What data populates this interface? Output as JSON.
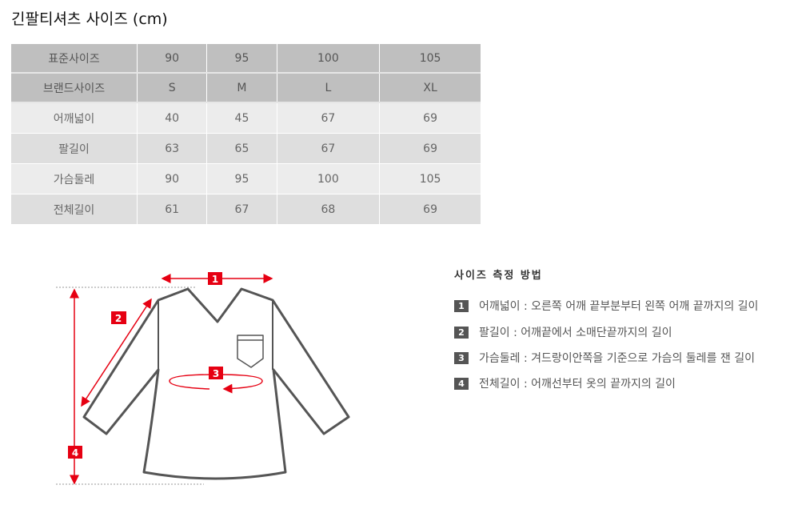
{
  "title": "긴팔티셔츠 사이즈 (cm)",
  "table": {
    "headers": [
      [
        "표준사이즈",
        "90",
        "95",
        "100",
        "105"
      ],
      [
        "브랜드사이즈",
        "S",
        "M",
        "L",
        "XL"
      ]
    ],
    "rows": [
      [
        "어깨넓이",
        "40",
        "45",
        "67",
        "69"
      ],
      [
        "팔길이",
        "63",
        "65",
        "67",
        "69"
      ],
      [
        "가슴둘레",
        "90",
        "95",
        "100",
        "105"
      ],
      [
        "전체길이",
        "61",
        "67",
        "68",
        "69"
      ]
    ]
  },
  "diagram": {
    "labels": [
      "1",
      "2",
      "3",
      "4"
    ],
    "accent_color": "#e60012",
    "outline_color": "#555555"
  },
  "method": {
    "title": "사이즈 측정 방법",
    "items": [
      {
        "num": "1",
        "text": "어깨넓이 : 오른쪽 어깨 끝부분부터 왼쪽 어깨 끝까지의 길이"
      },
      {
        "num": "2",
        "text": "팔길이 : 어깨끝에서 소매단끝까지의 길이"
      },
      {
        "num": "3",
        "text": "가슴둘레 : 겨드랑이안쪽을 기준으로 가슴의 둘레를 잰 길이"
      },
      {
        "num": "4",
        "text": "전체길이 : 어깨선부터 옷의 끝까지의 길이"
      }
    ]
  }
}
